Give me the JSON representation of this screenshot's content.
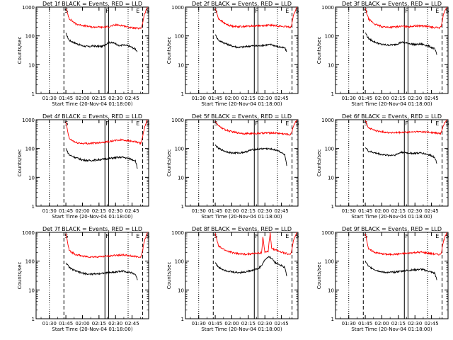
{
  "figure": {
    "subtitle_prefix": "BLACK = Events, RED = LLD",
    "xlabel": "Start Time (20-Nov-04 01:18:00)",
    "ylabel": "Counts/sec",
    "colors": {
      "events": "#000000",
      "lld": "#ff0000",
      "axis": "#000000",
      "background": "#ffffff"
    }
  },
  "chart_data": [
    {
      "type": "line",
      "title": "Det 1f BLACK = Events, RED = LLD",
      "xlabel": "Start Time (20-Nov-04 01:18:00)",
      "ylabel": "Counts/sec",
      "yscale": "log",
      "ylim": [
        1,
        1000
      ],
      "x_ticks": [
        "01:30",
        "01:45",
        "02:00",
        "02:15",
        "02:30",
        "02:45"
      ],
      "y_ticks": [
        "1",
        "10",
        "100",
        "1000"
      ],
      "markers": [
        "S",
        "F",
        "E",
        "S"
      ],
      "series": [
        {
          "name": "Events",
          "color": "#000000",
          "x": [
            1.75,
            1.8,
            1.9,
            2.0,
            2.1,
            2.15,
            2.2,
            2.3,
            2.4,
            2.5,
            2.55,
            2.6,
            2.7,
            2.8,
            2.83
          ],
          "values": [
            120,
            70,
            55,
            45,
            42,
            45,
            44,
            43,
            60,
            55,
            45,
            48,
            45,
            35,
            28
          ]
        },
        {
          "name": "LLD",
          "color": "#ff0000",
          "x": [
            1.75,
            1.8,
            1.9,
            2.0,
            2.1,
            2.15,
            2.2,
            2.3,
            2.4,
            2.5,
            2.6,
            2.7,
            2.8,
            2.88,
            2.9,
            2.93,
            2.98
          ],
          "values": [
            900,
            400,
            260,
            230,
            210,
            200,
            205,
            200,
            210,
            240,
            230,
            200,
            185,
            180,
            220,
            500,
            1000
          ]
        }
      ]
    },
    {
      "type": "line",
      "title": "Det 2f BLACK = Events, RED = LLD",
      "xlabel": "Start Time (20-Nov-04 01:18:00)",
      "ylabel": "Counts/sec",
      "yscale": "log",
      "ylim": [
        1,
        1000
      ],
      "x_ticks": [
        "01:30",
        "01:45",
        "02:00",
        "02:15",
        "02:30",
        "02:45"
      ],
      "y_ticks": [
        "1",
        "10",
        "100",
        "1000"
      ],
      "markers": [
        "S",
        "F",
        "E",
        "S"
      ],
      "series": [
        {
          "name": "Events",
          "color": "#000000",
          "x": [
            1.75,
            1.8,
            1.9,
            2.0,
            2.1,
            2.2,
            2.3,
            2.4,
            2.5,
            2.6,
            2.7,
            2.8,
            2.83
          ],
          "values": [
            110,
            70,
            55,
            45,
            40,
            42,
            45,
            45,
            48,
            50,
            42,
            38,
            28
          ]
        },
        {
          "name": "LLD",
          "color": "#ff0000",
          "x": [
            1.75,
            1.8,
            1.9,
            2.0,
            2.1,
            2.2,
            2.3,
            2.4,
            2.5,
            2.6,
            2.7,
            2.8,
            2.88,
            2.9,
            2.93,
            2.98
          ],
          "values": [
            900,
            400,
            260,
            220,
            210,
            215,
            220,
            225,
            230,
            235,
            220,
            210,
            200,
            220,
            500,
            1000
          ]
        }
      ]
    },
    {
      "type": "line",
      "title": "Det 3f BLACK = Events, RED = LLD",
      "xlabel": "Start Time (20-Nov-04 01:18:00)",
      "ylabel": "Counts/sec",
      "yscale": "log",
      "ylim": [
        1,
        1000
      ],
      "x_ticks": [
        "01:30",
        "01:45",
        "02:00",
        "02:15",
        "02:30",
        "02:45"
      ],
      "y_ticks": [
        "1",
        "10",
        "100",
        "1000"
      ],
      "markers": [
        "S",
        "F",
        "E",
        "S"
      ],
      "series": [
        {
          "name": "Events",
          "color": "#000000",
          "x": [
            1.75,
            1.8,
            1.9,
            2.0,
            2.1,
            2.2,
            2.3,
            2.4,
            2.5,
            2.6,
            2.7,
            2.8,
            2.83
          ],
          "values": [
            130,
            80,
            60,
            50,
            48,
            50,
            60,
            55,
            50,
            52,
            45,
            35,
            22
          ]
        },
        {
          "name": "LLD",
          "color": "#ff0000",
          "x": [
            1.75,
            1.8,
            1.9,
            2.0,
            2.1,
            2.2,
            2.3,
            2.4,
            2.5,
            2.6,
            2.7,
            2.8,
            2.88,
            2.9,
            2.93,
            2.98
          ],
          "values": [
            900,
            380,
            250,
            210,
            200,
            205,
            215,
            210,
            220,
            225,
            210,
            195,
            190,
            230,
            550,
            1000
          ]
        }
      ]
    },
    {
      "type": "line",
      "title": "Det 4f BLACK = Events, RED = LLD",
      "xlabel": "Start Time (20-Nov-04 01:18:00)",
      "ylabel": "Counts/sec",
      "yscale": "log",
      "ylim": [
        1,
        1000
      ],
      "x_ticks": [
        "01:30",
        "01:45",
        "02:00",
        "02:15",
        "02:30",
        "02:45"
      ],
      "y_ticks": [
        "1",
        "10",
        "100",
        "1000"
      ],
      "markers": [
        "S",
        "F",
        "E",
        "S"
      ],
      "series": [
        {
          "name": "Events",
          "color": "#000000",
          "x": [
            1.75,
            1.8,
            1.9,
            2.0,
            2.1,
            2.2,
            2.3,
            2.4,
            2.5,
            2.6,
            2.7,
            2.8,
            2.83
          ],
          "values": [
            100,
            60,
            48,
            40,
            38,
            40,
            42,
            45,
            48,
            50,
            45,
            38,
            20
          ]
        },
        {
          "name": "LLD",
          "color": "#ff0000",
          "x": [
            1.75,
            1.8,
            1.9,
            2.0,
            2.1,
            2.2,
            2.3,
            2.4,
            2.5,
            2.6,
            2.7,
            2.8,
            2.88,
            2.9,
            2.93,
            2.98
          ],
          "values": [
            800,
            220,
            160,
            150,
            150,
            155,
            165,
            175,
            190,
            200,
            185,
            170,
            150,
            200,
            450,
            1000
          ]
        }
      ]
    },
    {
      "type": "line",
      "title": "Det 5f BLACK = Events, RED = LLD",
      "xlabel": "Start Time (20-Nov-04 01:18:00)",
      "ylabel": "Counts/sec",
      "yscale": "log",
      "ylim": [
        1,
        1000
      ],
      "x_ticks": [
        "01:30",
        "01:45",
        "02:00",
        "02:15",
        "02:30",
        "02:45"
      ],
      "y_ticks": [
        "1",
        "10",
        "100",
        "1000"
      ],
      "markers": [
        "S",
        "F",
        "E",
        "S"
      ],
      "series": [
        {
          "name": "Events",
          "color": "#000000",
          "x": [
            1.75,
            1.8,
            1.9,
            2.0,
            2.1,
            2.2,
            2.3,
            2.4,
            2.5,
            2.6,
            2.7,
            2.8,
            2.83
          ],
          "values": [
            130,
            100,
            80,
            70,
            70,
            75,
            90,
            95,
            100,
            95,
            85,
            60,
            25
          ]
        },
        {
          "name": "LLD",
          "color": "#ff0000",
          "x": [
            1.75,
            1.8,
            1.9,
            2.0,
            2.1,
            2.2,
            2.3,
            2.4,
            2.5,
            2.6,
            2.7,
            2.8,
            2.88,
            2.9,
            2.93,
            2.98
          ],
          "values": [
            900,
            600,
            450,
            380,
            350,
            330,
            330,
            335,
            345,
            350,
            340,
            320,
            300,
            330,
            600,
            1000
          ]
        }
      ]
    },
    {
      "type": "line",
      "title": "Det 6f BLACK = Events, RED = LLD",
      "xlabel": "Start Time (20-Nov-04 01:18:00)",
      "ylabel": "Counts/sec",
      "yscale": "log",
      "ylim": [
        1,
        1000
      ],
      "x_ticks": [
        "01:30",
        "01:45",
        "02:00",
        "02:15",
        "02:30",
        "02:45"
      ],
      "y_ticks": [
        "1",
        "10",
        "100",
        "1000"
      ],
      "markers": [
        "S",
        "F",
        "E",
        "S"
      ],
      "series": [
        {
          "name": "Events",
          "color": "#000000",
          "x": [
            1.75,
            1.8,
            1.9,
            2.0,
            2.1,
            2.2,
            2.3,
            2.4,
            2.5,
            2.6,
            2.7,
            2.8,
            2.83
          ],
          "values": [
            110,
            80,
            70,
            62,
            58,
            60,
            75,
            70,
            68,
            70,
            62,
            50,
            30
          ]
        },
        {
          "name": "LLD",
          "color": "#ff0000",
          "x": [
            1.75,
            1.8,
            1.9,
            2.0,
            2.1,
            2.2,
            2.3,
            2.4,
            2.5,
            2.6,
            2.7,
            2.8,
            2.88,
            2.9,
            2.93,
            2.98
          ],
          "values": [
            950,
            520,
            420,
            380,
            360,
            350,
            360,
            370,
            380,
            385,
            370,
            350,
            330,
            360,
            650,
            1000
          ]
        }
      ]
    },
    {
      "type": "line",
      "title": "Det 7f BLACK = Events, RED = LLD",
      "xlabel": "Start Time (20-Nov-04 01:18:00)",
      "ylabel": "Counts/sec",
      "yscale": "log",
      "ylim": [
        1,
        1000
      ],
      "x_ticks": [
        "01:30",
        "01:45",
        "02:00",
        "02:15",
        "02:30",
        "02:45"
      ],
      "y_ticks": [
        "1",
        "10",
        "100",
        "1000"
      ],
      "markers": [
        "S",
        "F",
        "E",
        "S"
      ],
      "series": [
        {
          "name": "Events",
          "color": "#000000",
          "x": [
            1.75,
            1.8,
            1.9,
            2.0,
            2.1,
            2.2,
            2.3,
            2.4,
            2.5,
            2.6,
            2.7,
            2.8,
            2.83
          ],
          "values": [
            90,
            60,
            45,
            38,
            35,
            36,
            38,
            40,
            42,
            45,
            42,
            35,
            22
          ]
        },
        {
          "name": "LLD",
          "color": "#ff0000",
          "x": [
            1.75,
            1.8,
            1.9,
            2.0,
            2.1,
            2.2,
            2.3,
            2.4,
            2.5,
            2.6,
            2.7,
            2.8,
            2.88,
            2.9,
            2.93,
            2.98
          ],
          "values": [
            900,
            230,
            170,
            150,
            140,
            140,
            145,
            150,
            160,
            165,
            155,
            145,
            140,
            180,
            450,
            1000
          ]
        }
      ]
    },
    {
      "type": "line",
      "title": "Det 8f BLACK = Events, RED = LLD",
      "xlabel": "Start Time (20-Nov-04 01:18:00)",
      "ylabel": "Counts/sec",
      "yscale": "log",
      "ylim": [
        1,
        1000
      ],
      "x_ticks": [
        "01:30",
        "01:45",
        "02:00",
        "02:15",
        "02:30",
        "02:45"
      ],
      "y_ticks": [
        "1",
        "10",
        "100",
        "1000"
      ],
      "markers": [
        "S",
        "F",
        "E",
        "S"
      ],
      "series": [
        {
          "name": "Events",
          "color": "#000000",
          "x": [
            1.75,
            1.8,
            1.9,
            2.0,
            2.1,
            2.2,
            2.3,
            2.4,
            2.45,
            2.5,
            2.55,
            2.6,
            2.65,
            2.7,
            2.75,
            2.8,
            2.83
          ],
          "values": [
            90,
            60,
            48,
            42,
            40,
            42,
            48,
            55,
            70,
            110,
            140,
            130,
            90,
            80,
            70,
            60,
            30
          ]
        },
        {
          "name": "LLD",
          "color": "#ff0000",
          "x": [
            1.75,
            1.8,
            1.9,
            2.0,
            2.1,
            2.2,
            2.3,
            2.4,
            2.45,
            2.47,
            2.5,
            2.55,
            2.58,
            2.6,
            2.7,
            2.8,
            2.88,
            2.9,
            2.93,
            2.98
          ],
          "values": [
            900,
            330,
            240,
            200,
            180,
            175,
            180,
            190,
            195,
            700,
            200,
            220,
            1000,
            280,
            230,
            190,
            170,
            200,
            500,
            1000
          ]
        }
      ]
    },
    {
      "type": "line",
      "title": "Det 9f BLACK = Events, RED = LLD",
      "xlabel": "Start Time (20-Nov-04 01:18:00)",
      "ylabel": "Counts/sec",
      "yscale": "log",
      "ylim": [
        1,
        1000
      ],
      "x_ticks": [
        "01:30",
        "01:45",
        "02:00",
        "02:15",
        "02:30",
        "02:45"
      ],
      "y_ticks": [
        "1",
        "10",
        "100",
        "1000"
      ],
      "markers": [
        "S",
        "F",
        "E",
        "S"
      ],
      "series": [
        {
          "name": "Events",
          "color": "#000000",
          "x": [
            1.75,
            1.8,
            1.9,
            2.0,
            2.1,
            2.2,
            2.3,
            2.4,
            2.5,
            2.6,
            2.7,
            2.8,
            2.83
          ],
          "values": [
            100,
            65,
            50,
            42,
            40,
            42,
            45,
            48,
            50,
            52,
            45,
            38,
            22
          ]
        },
        {
          "name": "LLD",
          "color": "#ff0000",
          "x": [
            1.75,
            1.8,
            1.9,
            2.0,
            2.1,
            2.2,
            2.3,
            2.4,
            2.5,
            2.6,
            2.7,
            2.8,
            2.88,
            2.9,
            2.93,
            2.98
          ],
          "values": [
            950,
            260,
            200,
            180,
            170,
            175,
            180,
            190,
            200,
            205,
            190,
            175,
            170,
            200,
            480,
            1000
          ]
        }
      ]
    }
  ]
}
